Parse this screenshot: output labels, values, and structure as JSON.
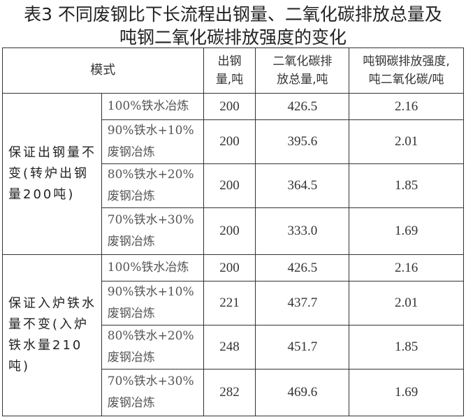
{
  "title": {
    "line1": "表3  不同废钢比下长流程出钢量、二氧化碳排放总量及",
    "line2": "吨钢二氧化碳排放强度的变化"
  },
  "headers": {
    "mode": "模式",
    "steel_output": [
      "出钢",
      "量,吨"
    ],
    "co2_total": [
      "二氧化碳排",
      "放总量,吨"
    ],
    "intensity": [
      "吨钢碳排放强度,",
      "吨二氧化碳/吨"
    ]
  },
  "groups": [
    {
      "label": "保证出钢量不变(转炉出钢量200吨)",
      "rows": [
        {
          "scenario": "100%铁水冶炼",
          "steel": "200",
          "co2": "426.5",
          "intensity": "2.16"
        },
        {
          "scenario": "90%铁水+10%废钢冶炼",
          "steel": "200",
          "co2": "395.6",
          "intensity": "2.01"
        },
        {
          "scenario": "80%铁水+20%废钢冶炼",
          "steel": "200",
          "co2": "364.5",
          "intensity": "1.85"
        },
        {
          "scenario": "70%铁水+30%废钢冶炼",
          "steel": "200",
          "co2": "333.0",
          "intensity": "1.69"
        }
      ]
    },
    {
      "label": "保证入炉铁水量不变(入炉铁水量210吨)",
      "rows": [
        {
          "scenario": "100%铁水冶炼",
          "steel": "200",
          "co2": "426.5",
          "intensity": "2.16"
        },
        {
          "scenario": "90%铁水+10%废钢冶炼",
          "steel": "221",
          "co2": "437.7",
          "intensity": "2.01"
        },
        {
          "scenario": "80%铁水+20%废钢冶炼",
          "steel": "248",
          "co2": "451.7",
          "intensity": "1.85"
        },
        {
          "scenario": "70%铁水+30%废钢冶炼",
          "steel": "282",
          "co2": "469.6",
          "intensity": "1.69"
        }
      ]
    }
  ]
}
